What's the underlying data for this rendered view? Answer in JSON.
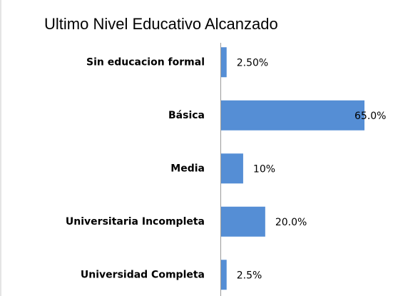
{
  "chart_data": {
    "type": "bar",
    "orientation": "horizontal",
    "title": "Ultimo Nivel Educativo Alcanzado",
    "categories": [
      "Sin educacion formal",
      "Básica",
      "Media",
      "Universitaria Incompleta",
      "Universidad Completa"
    ],
    "values": [
      2.5,
      65,
      10,
      20,
      2.5
    ],
    "value_labels": [
      "2.50%",
      "65.0%",
      "10%",
      "20.0%",
      "2.5%"
    ],
    "color": "#558ed5"
  }
}
